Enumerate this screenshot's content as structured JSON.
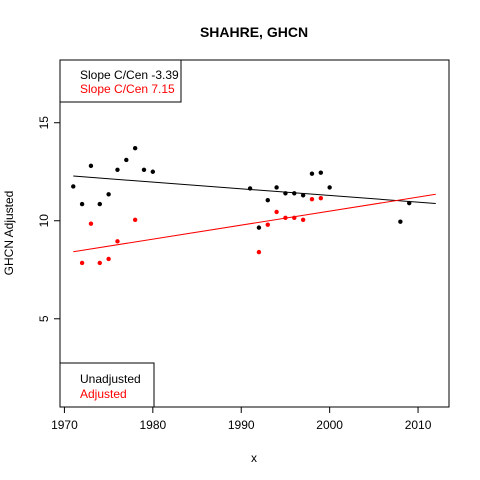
{
  "chart_data": {
    "type": "scatter",
    "title": "SHAHRE, GHCN",
    "xlabel": "x",
    "ylabel": "GHCN Adjusted",
    "xlim": [
      1969.5,
      2013.5
    ],
    "ylim": [
      0.5,
      18.2
    ],
    "x_ticks": [
      1970,
      1980,
      1990,
      2000,
      2010
    ],
    "y_ticks": [
      5,
      10,
      15
    ],
    "grid": false,
    "series": [
      {
        "name": "Unadjusted",
        "color": "#000000",
        "points": [
          [
            1971,
            11.75
          ],
          [
            1972,
            10.85
          ],
          [
            1973,
            12.8
          ],
          [
            1974,
            10.85
          ],
          [
            1975,
            11.35
          ],
          [
            1976,
            12.6
          ],
          [
            1977,
            13.1
          ],
          [
            1978,
            13.7
          ],
          [
            1979,
            12.6
          ],
          [
            1980,
            12.5
          ],
          [
            1991,
            11.65
          ],
          [
            1992,
            9.65
          ],
          [
            1993,
            11.05
          ],
          [
            1994,
            11.7
          ],
          [
            1995,
            11.4
          ],
          [
            1996,
            11.4
          ],
          [
            1997,
            11.3
          ],
          [
            1998,
            12.4
          ],
          [
            1999,
            12.45
          ],
          [
            2000,
            11.7
          ],
          [
            2008,
            9.95
          ],
          [
            2009,
            10.9
          ]
        ],
        "trend": {
          "x": [
            1971,
            2012
          ],
          "y": [
            12.28,
            10.88
          ]
        }
      },
      {
        "name": "Adjusted",
        "color": "#ff0000",
        "points": [
          [
            1972,
            7.85
          ],
          [
            1973,
            9.85
          ],
          [
            1974,
            7.85
          ],
          [
            1975,
            8.05
          ],
          [
            1976,
            8.95
          ],
          [
            1978,
            10.05
          ],
          [
            1992,
            8.4
          ],
          [
            1993,
            9.8
          ],
          [
            1994,
            10.45
          ],
          [
            1995,
            10.15
          ],
          [
            1996,
            10.15
          ],
          [
            1997,
            10.05
          ],
          [
            1998,
            11.1
          ],
          [
            1999,
            11.15
          ]
        ],
        "trend": {
          "x": [
            1971,
            2012
          ],
          "y": [
            8.42,
            11.35
          ]
        }
      }
    ],
    "annotations": [
      {
        "text": "Slope C/Cen -3.39",
        "color": "#000000"
      },
      {
        "text": "Slope C/Cen 7.15",
        "color": "#ff0000"
      }
    ],
    "legend": {
      "position": "bottom-left",
      "entries": [
        {
          "text": "Unadjusted",
          "color": "#000000"
        },
        {
          "text": "Adjusted",
          "color": "#ff0000"
        }
      ]
    }
  }
}
